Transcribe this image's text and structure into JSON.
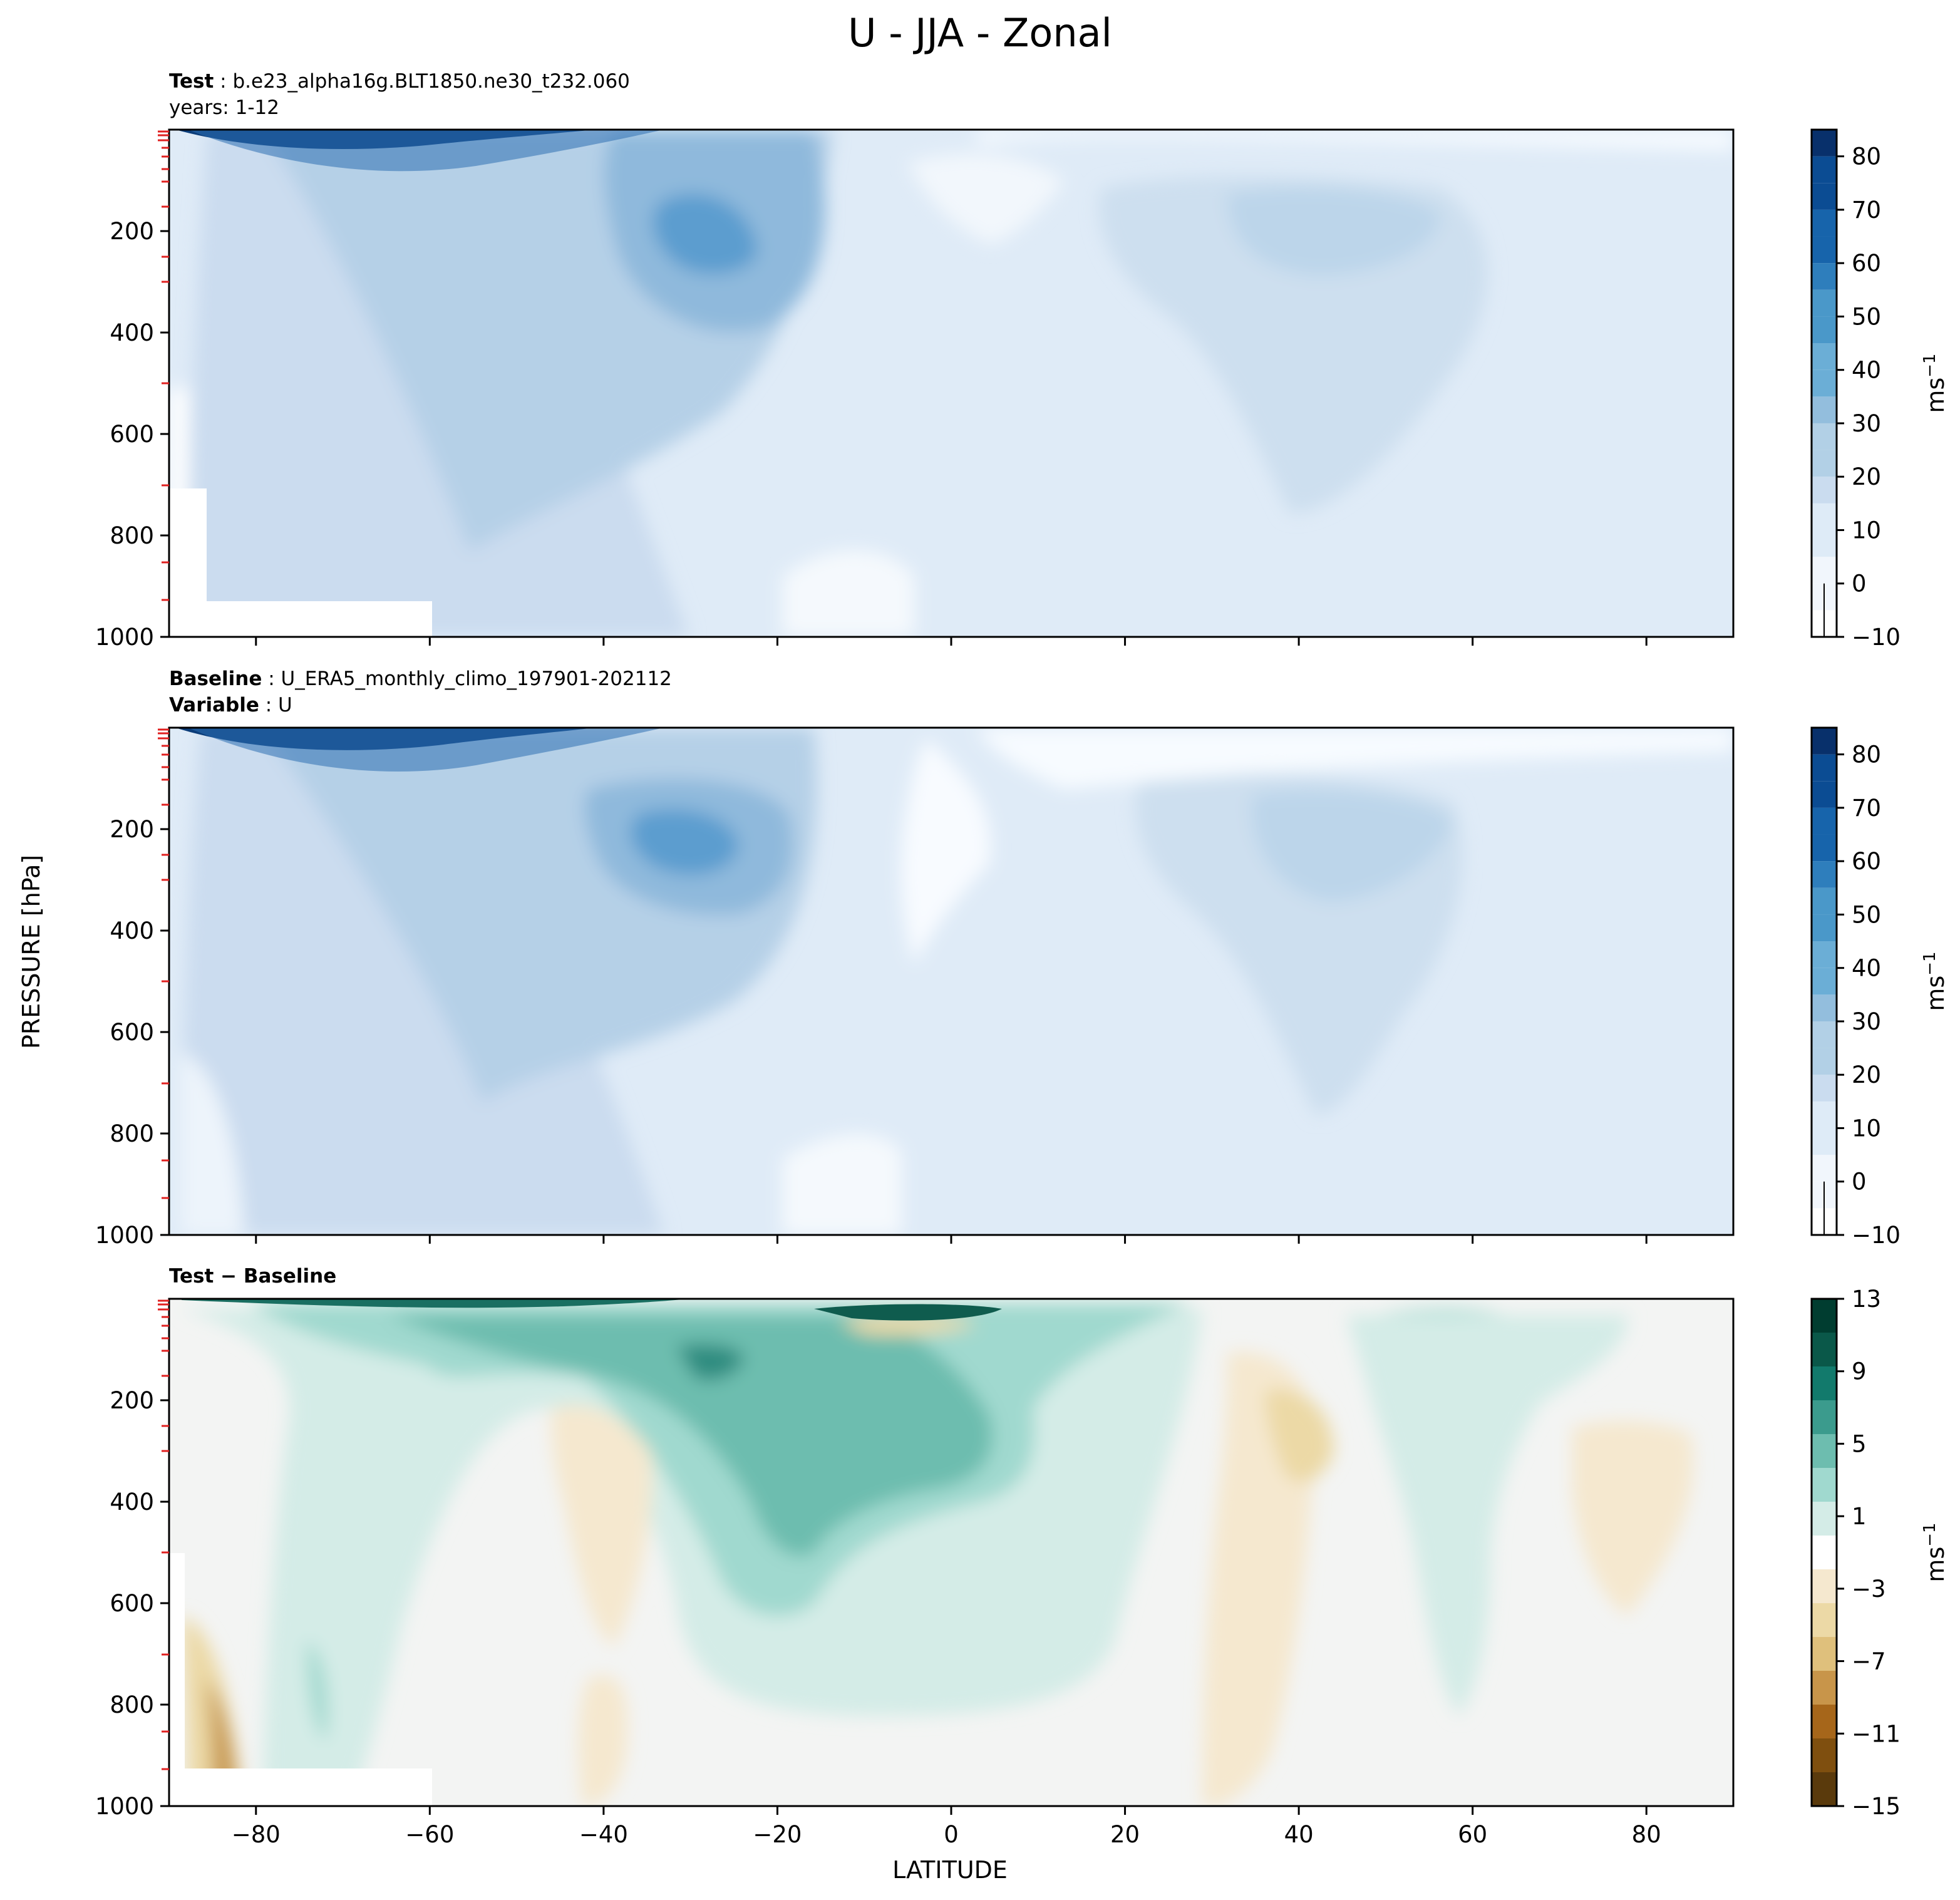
{
  "title": "U - JJA - Zonal",
  "panels": [
    {
      "id": "test",
      "label1_bold": "Test",
      "label1_text": "b.e23_alpha16g.BLT1850.ne30_t232.060",
      "label2_bold": "",
      "label2_text": "years: 1-12"
    },
    {
      "id": "baseline",
      "label1_bold": "Baseline",
      "label1_text": "U_ERA5_monthly_climo_197901-202112",
      "label2_bold": "Variable",
      "label2_text": "U"
    },
    {
      "id": "diff",
      "label1_bold": "Test − Baseline",
      "label1_text": "",
      "label2_bold": "",
      "label2_text": ""
    }
  ],
  "colorbar_unit_base": "ms",
  "colorbar_unit_exp": "−1",
  "chart_data": [
    {
      "type": "contour",
      "title": "Test : b.e23_alpha16g.BLT1850.ne30_t232.060 / years: 1-12",
      "xlabel": "",
      "ylabel": "PRESSURE [hPa]",
      "xlim": [
        -90,
        90
      ],
      "ylim": [
        1000,
        0
      ],
      "yticks": [
        "200",
        "400",
        "600",
        "800",
        "1000"
      ],
      "colorbar_ticks": [
        "−10",
        "0",
        "10",
        "20",
        "30",
        "40",
        "50",
        "60",
        "70",
        "80"
      ],
      "colorbar_range": [
        -10,
        85
      ],
      "features": [
        {
          "name": "SH polar night jet core",
          "lat": -58,
          "pressure": 5,
          "value": 85
        },
        {
          "name": "SH subtropical jet core",
          "lat": -28,
          "pressure": 200,
          "value": 45
        },
        {
          "name": "NH midlatitude jet core",
          "lat": 45,
          "pressure": 200,
          "value": 25
        }
      ]
    },
    {
      "type": "contour",
      "title": "Baseline : U_ERA5_monthly_climo_197901-202112 / Variable : U",
      "xlabel": "",
      "ylabel": "PRESSURE [hPa]",
      "xlim": [
        -90,
        90
      ],
      "ylim": [
        1000,
        0
      ],
      "yticks": [
        "200",
        "400",
        "600",
        "800",
        "1000"
      ],
      "colorbar_ticks": [
        "−10",
        "0",
        "10",
        "20",
        "30",
        "40",
        "50",
        "60",
        "70",
        "80"
      ],
      "colorbar_range": [
        -10,
        85
      ],
      "features": [
        {
          "name": "SH polar night jet core",
          "lat": -58,
          "pressure": 5,
          "value": 85
        },
        {
          "name": "SH subtropical jet core",
          "lat": -28,
          "pressure": 200,
          "value": 45
        },
        {
          "name": "NH midlatitude jet core",
          "lat": 44,
          "pressure": 200,
          "value": 25
        }
      ]
    },
    {
      "type": "contour",
      "title": "Test − Baseline",
      "xlabel": "LATITUDE",
      "ylabel": "PRESSURE [hPa]",
      "xlim": [
        -90,
        90
      ],
      "ylim": [
        1000,
        0
      ],
      "xticks": [
        "−80",
        "−60",
        "−40",
        "−20",
        "0",
        "20",
        "40",
        "60",
        "80"
      ],
      "yticks": [
        "200",
        "400",
        "600",
        "800",
        "1000"
      ],
      "colorbar_ticks": [
        "−15",
        "−11",
        "−7",
        "−3",
        "1",
        "5",
        "9",
        "13"
      ],
      "colorbar_range": [
        -15,
        13
      ],
      "features": [
        {
          "name": "positive anomaly near equator top",
          "lat": -5,
          "pressure": 25,
          "value": 13
        },
        {
          "name": "positive anomaly SH subtropics",
          "lat": -25,
          "pressure": 200,
          "value": 8
        },
        {
          "name": "negative anomaly NH midlatitudes",
          "lat": 40,
          "pressure": 250,
          "value": -4
        },
        {
          "name": "positive anomaly NH high latitudes",
          "lat": 55,
          "pressure": 100,
          "value": 4
        }
      ]
    }
  ]
}
